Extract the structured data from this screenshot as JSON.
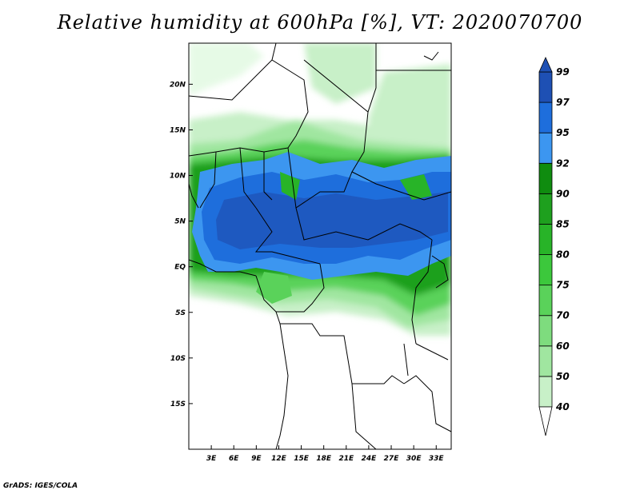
{
  "title": "Relative humidity at 600hPa [%], VT: 2020070700",
  "footer": "GrADS: IGES/COLA",
  "lat_labels": [
    "20N",
    "15N",
    "10N",
    "5N",
    "EQ",
    "5S",
    "10S",
    "15S"
  ],
  "lat_values": [
    20,
    15,
    10,
    5,
    0,
    -5,
    -10,
    -15
  ],
  "lon_labels": [
    "3E",
    "6E",
    "9E",
    "12E",
    "15E",
    "18E",
    "21E",
    "24E",
    "27E",
    "30E",
    "33E"
  ],
  "lon_values": [
    3,
    6,
    9,
    12,
    15,
    18,
    21,
    24,
    27,
    30,
    33
  ],
  "colorbar": {
    "levels": [
      "40",
      "50",
      "60",
      "70",
      "75",
      "80",
      "85",
      "90",
      "92",
      "95",
      "97",
      "99"
    ],
    "colors": [
      "#e6fae6",
      "#c8f0c8",
      "#a0e6a0",
      "#7edc7e",
      "#5ad25a",
      "#3cc83c",
      "#28b428",
      "#1ea01e",
      "#0f8c0f",
      "#3c96f0",
      "#1e6edc",
      "#1e50b4"
    ]
  },
  "map_extent": {
    "lon_min": 0,
    "lon_max": 35,
    "lat_min": -20,
    "lat_max": 24.5
  }
}
